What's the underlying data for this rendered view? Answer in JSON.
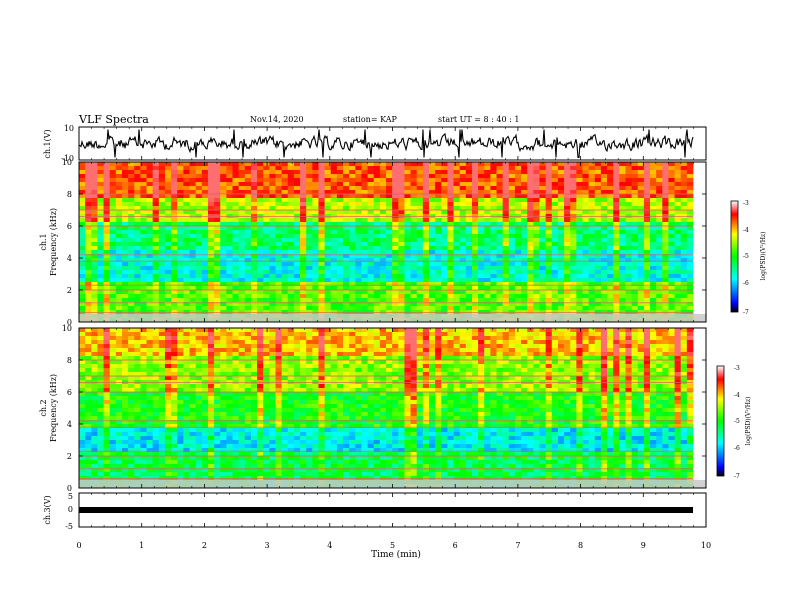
{
  "header": {
    "title": "VLF Spectra",
    "date": "Nov.14, 2020",
    "station": "station= KAP",
    "start": "start  UT  =   8 : 40 : 1"
  },
  "chart_data": [
    {
      "type": "line",
      "name": "ch1-waveform",
      "ylabel": "ch.1(V)",
      "ylim": [
        -10,
        10
      ],
      "yticks": [
        "10",
        "-10"
      ],
      "xlim": [
        0,
        10
      ]
    },
    {
      "type": "heatmap",
      "name": "ch1-spectrogram",
      "ylabel": "ch.1\nFrequency (kHz)",
      "ylim": [
        0,
        10
      ],
      "yticks": [
        "0",
        "2",
        "4",
        "6",
        "8",
        "10"
      ],
      "xlim": [
        0,
        10
      ],
      "colorbar": {
        "label": "log(PSD)(V²/Hz)",
        "range": [
          -7,
          -3
        ],
        "ticks": [
          "-3",
          "-4",
          "-5",
          "-6",
          "-7"
        ]
      }
    },
    {
      "type": "heatmap",
      "name": "ch2-spectrogram",
      "ylabel": "ch.2\nFrequency (kHz)",
      "ylim": [
        0,
        10
      ],
      "yticks": [
        "0",
        "2",
        "4",
        "6",
        "8",
        "10"
      ],
      "xlim": [
        0,
        10
      ],
      "colorbar": {
        "label": "log(PSD)(V²/Hz)",
        "range": [
          -7,
          -3
        ],
        "ticks": [
          "-3",
          "-4",
          "-5",
          "-6",
          "-7"
        ]
      }
    },
    {
      "type": "line",
      "name": "ch3-waveform",
      "ylabel": "ch.3(V)",
      "ylim": [
        -5,
        5
      ],
      "yticks": [
        "5",
        "0",
        "-5"
      ],
      "xlim": [
        0,
        10
      ],
      "xlabel": "Time (min)",
      "xticks": [
        "0",
        "1",
        "2",
        "3",
        "4",
        "5",
        "6",
        "7",
        "8",
        "9",
        "10"
      ]
    }
  ],
  "labels": {
    "ch1_axis": "ch.1(V)",
    "ch1_spec_a": "ch.1",
    "ch1_spec_b": "Frequency (kHz)",
    "ch2_spec_a": "ch.2",
    "ch2_spec_b": "Frequency (kHz)",
    "ch3_axis": "ch.3(V)",
    "cb_label": "log(PSD)(V²/Hz)",
    "xlabel": "Time (min)"
  }
}
